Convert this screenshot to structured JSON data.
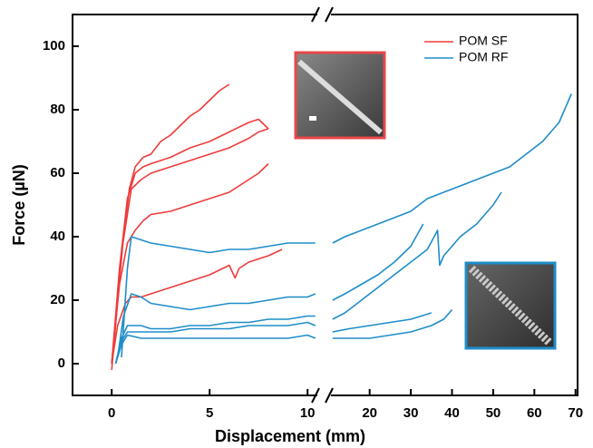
{
  "chart_data": [
    {
      "type": "line",
      "x_label": "Displacement (mm)",
      "y_label": "Force (µN)",
      "xlim": [
        -2,
        10.5
      ],
      "xticks": [
        0,
        5,
        10
      ],
      "ylim": [
        -10,
        110
      ],
      "yticks": [
        0,
        20,
        40,
        60,
        80,
        100
      ],
      "series": [
        {
          "name": "POM SF",
          "color": "#ee3b3b",
          "x": [
            0,
            0.3,
            0.6,
            0.9,
            1.2,
            1.6,
            2,
            2.5,
            3,
            3.5,
            4,
            4.5,
            5,
            5.5,
            6
          ],
          "y": [
            -2,
            20,
            40,
            55,
            62,
            65,
            66,
            70,
            72,
            75,
            78,
            80,
            83,
            86,
            88
          ]
        },
        {
          "color": "#ee3b3b",
          "x": [
            0,
            0.4,
            0.8,
            1.2,
            1.6,
            2,
            3,
            4,
            5,
            6,
            7,
            7.5,
            8
          ],
          "y": [
            0,
            30,
            52,
            60,
            62,
            63,
            65,
            68,
            70,
            73,
            76,
            77,
            74
          ]
        },
        {
          "color": "#ee3b3b",
          "x": [
            0,
            0.5,
            1,
            1.5,
            2,
            3,
            4,
            5,
            6,
            7,
            7.5,
            8
          ],
          "y": [
            0,
            35,
            55,
            58,
            60,
            62,
            64,
            66,
            68,
            71,
            73,
            74
          ]
        },
        {
          "color": "#ee3b3b",
          "x": [
            0,
            0.4,
            0.8,
            1.2,
            1.6,
            2,
            3,
            4,
            5,
            6,
            7,
            7.5,
            8
          ],
          "y": [
            0,
            25,
            38,
            42,
            45,
            47,
            48,
            50,
            52,
            54,
            58,
            60,
            63
          ]
        },
        {
          "color": "#ee3b3b",
          "x": [
            0,
            0.3,
            0.7,
            1,
            1.5,
            2,
            3,
            4,
            5,
            6,
            6.3,
            6.5,
            7,
            8,
            8.7
          ],
          "y": [
            0,
            12,
            19,
            21,
            21,
            22,
            24,
            26,
            28,
            31,
            27,
            30,
            32,
            34,
            36
          ]
        },
        {
          "name": "POM RF",
          "color": "#1e8dc9",
          "x": [
            0.5,
            0.8,
            1,
            1.5,
            2,
            3,
            4,
            5,
            6,
            7,
            8,
            9,
            10,
            10.4
          ],
          "y": [
            2,
            30,
            40,
            39,
            38,
            37,
            36,
            35,
            36,
            36,
            37,
            38,
            38,
            38
          ]
        },
        {
          "color": "#1e8dc9",
          "x": [
            0.3,
            0.6,
            1,
            1.5,
            2,
            3,
            4,
            5,
            6,
            7,
            8,
            9,
            10,
            10.4
          ],
          "y": [
            2,
            15,
            22,
            21,
            19,
            18,
            17,
            18,
            19,
            19,
            20,
            21,
            21,
            22
          ]
        },
        {
          "color": "#1e8dc9",
          "x": [
            0.2,
            0.5,
            0.8,
            1.5,
            2,
            3,
            4,
            5,
            6,
            7,
            8,
            9,
            10,
            10.4
          ],
          "y": [
            0,
            8,
            12,
            12,
            11,
            11,
            12,
            12,
            13,
            13,
            14,
            14,
            15,
            15
          ]
        },
        {
          "color": "#1e8dc9",
          "x": [
            0.2,
            0.5,
            0.8,
            1.5,
            2,
            3,
            4,
            5,
            6,
            7,
            8,
            9,
            10,
            10.4
          ],
          "y": [
            0,
            7,
            10,
            10,
            10,
            10,
            11,
            11,
            11,
            12,
            12,
            12,
            13,
            12
          ]
        },
        {
          "color": "#1e8dc9",
          "x": [
            0.2,
            0.5,
            0.8,
            1.5,
            2,
            3,
            4,
            5,
            6,
            7,
            8,
            9,
            10,
            10.4
          ],
          "y": [
            0,
            6,
            9,
            8,
            8,
            8,
            8,
            8,
            8,
            8,
            8,
            8,
            9,
            8
          ]
        }
      ]
    },
    {
      "type": "line",
      "xlim": [
        10.6,
        70.5
      ],
      "xticks": [
        20,
        30,
        40,
        50,
        60,
        70
      ],
      "ylim": [
        -10,
        110
      ],
      "series": [
        {
          "color": "#1e8dc9",
          "x": [
            11,
            14,
            18,
            22,
            26,
            30,
            34,
            38,
            42,
            46,
            50,
            54,
            58,
            62,
            66,
            69
          ],
          "y": [
            38,
            40,
            42,
            44,
            46,
            48,
            52,
            54,
            56,
            58,
            60,
            62,
            66,
            70,
            76,
            85
          ]
        },
        {
          "color": "#1e8dc9",
          "x": [
            11,
            14,
            18,
            22,
            26,
            30,
            33
          ],
          "y": [
            20,
            22,
            25,
            28,
            32,
            37,
            44
          ]
        },
        {
          "color": "#1e8dc9",
          "x": [
            11,
            14,
            18,
            22,
            26,
            30,
            34,
            36.5,
            37,
            38,
            42,
            46,
            50,
            52
          ],
          "y": [
            14,
            16,
            20,
            24,
            28,
            32,
            36,
            42,
            31,
            34,
            40,
            44,
            50,
            54
          ]
        },
        {
          "color": "#1e8dc9",
          "x": [
            11,
            15,
            20,
            25,
            30,
            35
          ],
          "y": [
            10,
            11,
            12,
            13,
            14,
            16
          ]
        },
        {
          "color": "#1e8dc9",
          "x": [
            11,
            15,
            20,
            25,
            30,
            35,
            38,
            40
          ],
          "y": [
            8,
            8,
            8,
            9,
            10,
            12,
            14,
            17
          ]
        }
      ]
    }
  ]
}
